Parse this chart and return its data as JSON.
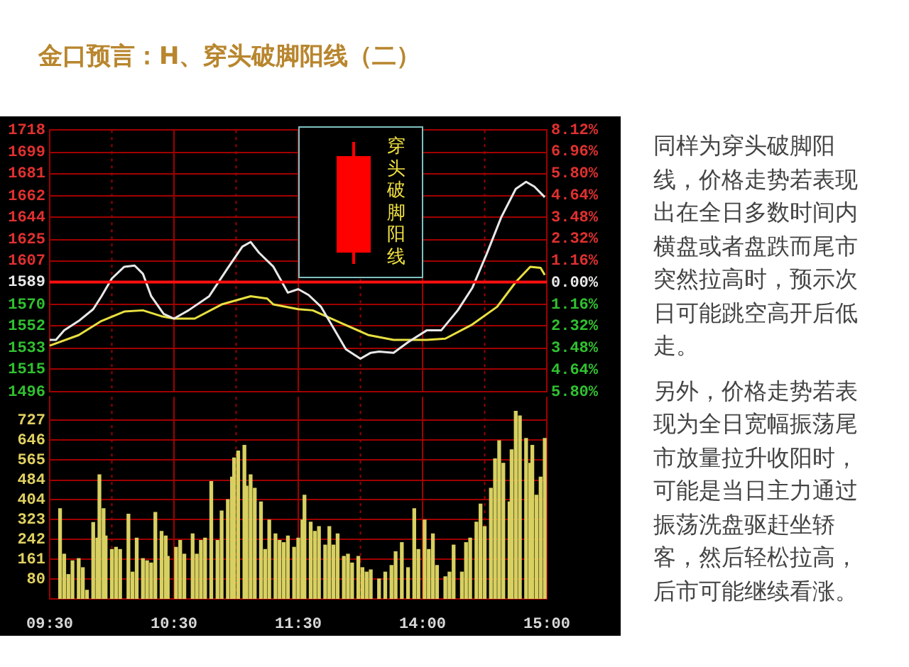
{
  "chart_data": [
    {
      "type": "line",
      "title": "金口预言：H、穿头破脚阳线（二）",
      "annotations": [
        "穿头破脚阳线",
        "同样为穿头破脚阳线，价格走势若表现出在全日多数时间内横盘或者盘跌而尾市突然拉高时，预示次日可能跳空高开后低走。",
        "另外，价格走势若表现为全日宽幅振荡尾市放量拉升收阳时，可能是当日主力通过振荡洗盘驱赶坐轿客，然后轻松拉高，后市可能继续看涨。"
      ],
      "categories": [
        null,
        null,
        null,
        null,
        null,
        null,
        null,
        null,
        null,
        null,
        null,
        null,
        null,
        null,
        null,
        null,
        null,
        null,
        null,
        null,
        null,
        null,
        null,
        null,
        null,
        null,
        null,
        null,
        null,
        null,
        null,
        null,
        null,
        null,
        null,
        null,
        null,
        null,
        null,
        null,
        null,
        null,
        null,
        null,
        null,
        null,
        null,
        null,
        null,
        null,
        null,
        null,
        null,
        null,
        null,
        null,
        null,
        null,
        null,
        null,
        null,
        null,
        null,
        null,
        null,
        null,
        null,
        null,
        null,
        null,
        null,
        null,
        null,
        null,
        null,
        null,
        null,
        null,
        null,
        null,
        null,
        null,
        null,
        null,
        null,
        null,
        null,
        null,
        null,
        null,
        null,
        null,
        null,
        null,
        null,
        null,
        null,
        null,
        null,
        null,
        null,
        null,
        null,
        null,
        null,
        null,
        null,
        null,
        null,
        null,
        null,
        null,
        null,
        null,
        null,
        null,
        null,
        null,
        null,
        null,
        null,
        null,
        null,
        null,
        null,
        null,
        null,
        null,
        null,
        null,
        null,
        null,
        null,
        null,
        null,
        null,
        null,
        null,
        null,
        null,
        null,
        null,
        null,
        null,
        null,
        null,
        null,
        null,
        null,
        null,
        null,
        null,
        null,
        null,
        null,
        null,
        null,
        null,
        null,
        null,
        null,
        null,
        null,
        null,
        null,
        null,
        null,
        null,
        null,
        null,
        null,
        null,
        null,
        null,
        null,
        null,
        null,
        null,
        null,
        null,
        null,
        null,
        null,
        null,
        null,
        null,
        null,
        null,
        null,
        null,
        null,
        null,
        null,
        null,
        null,
        null,
        null,
        null,
        null,
        null,
        null,
        null,
        null,
        null,
        null,
        null,
        null,
        null,
        null,
        null,
        null,
        null,
        null,
        null,
        null,
        null,
        null,
        null,
        null,
        null,
        null,
        null,
        null,
        null,
        null,
        null,
        null,
        null,
        null,
        null,
        null,
        null,
        null,
        null,
        null,
        null,
        null,
        null,
        null,
        null,
        null
      ],
      "series": [
        {
          "color": "#e8e8e8",
          "values": [
            1540,
            null,
            null,
            1540,
            null,
            null,
            null,
            1548,
            null,
            null,
            null,
            null,
            null,
            null,
            1556,
            null,
            null,
            null,
            null,
            null,
            null,
            1566,
            null,
            null,
            null,
            1577,
            null,
            null,
            null,
            null,
            1592,
            null,
            null,
            null,
            null,
            null,
            1602,
            null,
            null,
            null,
            null,
            1603,
            null,
            null,
            null,
            1596,
            null,
            null,
            null,
            1577,
            null,
            null,
            null,
            null,
            null,
            1562,
            null,
            null,
            null,
            null,
            1558,
            null,
            null,
            null,
            null,
            null,
            null,
            1565,
            null,
            null,
            null,
            null,
            null,
            null,
            null,
            null,
            null,
            1577,
            null,
            null,
            null,
            null,
            null,
            null,
            null,
            null,
            1601,
            null,
            null,
            null,
            null,
            null,
            null,
            1619,
            null,
            null,
            null,
            1623,
            null,
            null,
            null,
            1614,
            null,
            null,
            null,
            null,
            null,
            null,
            1602,
            null,
            null,
            null,
            null,
            null,
            null,
            1580,
            null,
            null,
            null,
            null,
            1583,
            null,
            null,
            null,
            null,
            1578,
            null,
            null,
            null,
            null,
            null,
            1568,
            null,
            null,
            null,
            null,
            1553,
            null,
            null,
            null,
            null,
            null,
            null,
            1532,
            null,
            null,
            null,
            null,
            null,
            null,
            1524,
            null,
            null,
            null,
            null,
            1529,
            null,
            null,
            null,
            1530,
            null,
            null,
            null,
            null,
            null,
            null,
            1529,
            null,
            null,
            null,
            null,
            null,
            null,
            1538,
            null,
            null,
            null,
            null,
            null,
            null,
            null,
            null,
            1548,
            null,
            null,
            null,
            null,
            null,
            null,
            1548,
            null,
            null,
            null,
            null,
            null,
            null,
            null,
            1565,
            null,
            null,
            null,
            null,
            null,
            null,
            1584,
            null,
            null,
            null,
            null,
            null,
            null,
            1613,
            null,
            null,
            null,
            null,
            null,
            null,
            1644,
            null,
            null,
            null,
            null,
            null,
            null,
            1668,
            null,
            null,
            null,
            null,
            1674,
            null,
            null,
            null,
            1670,
            null,
            null,
            null,
            null,
            1661,
            null
          ]
        },
        {
          "color": "#e8e040",
          "values": [
            1535,
            null,
            null,
            null,
            null,
            null,
            null,
            null,
            null,
            null,
            null,
            null,
            null,
            null,
            1544,
            null,
            null,
            null,
            null,
            null,
            null,
            null,
            null,
            null,
            null,
            1556,
            null,
            null,
            null,
            null,
            null,
            null,
            null,
            null,
            null,
            null,
            1564,
            null,
            null,
            null,
            null,
            null,
            null,
            null,
            null,
            1565,
            null,
            null,
            null,
            null,
            null,
            null,
            null,
            null,
            1560,
            null,
            null,
            null,
            null,
            null,
            1558,
            null,
            null,
            null,
            null,
            null,
            null,
            null,
            null,
            null,
            1558,
            null,
            null,
            null,
            null,
            null,
            null,
            null,
            null,
            null,
            null,
            null,
            null,
            1570,
            null,
            null,
            null,
            null,
            null,
            null,
            null,
            null,
            null,
            null,
            null,
            null,
            null,
            1577,
            null,
            null,
            null,
            null,
            null,
            null,
            null,
            1575,
            null,
            null,
            1570,
            null,
            null,
            null,
            null,
            null,
            null,
            null,
            null,
            null,
            null,
            null,
            1566,
            null,
            null,
            null,
            null,
            null,
            null,
            1565,
            null,
            null,
            null,
            null,
            null,
            null,
            null,
            null,
            null,
            null,
            null,
            null,
            null,
            1554,
            null,
            null,
            null,
            null,
            null,
            null,
            null,
            null,
            null,
            null,
            null,
            null,
            1544,
            null,
            null,
            null,
            null,
            null,
            null,
            null,
            null,
            null,
            null,
            null,
            1540,
            null,
            null,
            null,
            null,
            null,
            null,
            null,
            null,
            null,
            null,
            null,
            null,
            null,
            null,
            null,
            1540,
            null,
            null,
            null,
            null,
            null,
            null,
            null,
            null,
            1541,
            null,
            null,
            null,
            null,
            null,
            null,
            null,
            null,
            null,
            null,
            null,
            null,
            1553,
            null,
            null,
            null,
            null,
            null,
            null,
            null,
            null,
            null,
            null,
            null,
            1568,
            null,
            null,
            null,
            null,
            null,
            null,
            null,
            null,
            1589,
            null,
            null,
            null,
            null,
            null,
            null,
            1602,
            null,
            null,
            null,
            null,
            1601,
            null,
            1595,
            null
          ]
        }
      ],
      "ylim": [
        1496,
        1718
      ],
      "yticks": [
        1718,
        1699,
        1681,
        1662,
        1644,
        1625,
        1607,
        1589,
        1570,
        1552,
        1533,
        1515,
        1496
      ],
      "y2lim": [
        -5.8,
        8.12
      ],
      "y2ticks": [
        {
          "value": 8.12,
          "label": "8.12%"
        },
        {
          "value": 6.96,
          "label": "6.96%"
        },
        {
          "value": 5.8,
          "label": "5.80%"
        },
        {
          "value": 4.64,
          "label": "4.64%"
        },
        {
          "value": 3.48,
          "label": "3.48%"
        },
        {
          "value": 2.32,
          "label": "2.32%"
        },
        {
          "value": 1.16,
          "label": "1.16%"
        },
        {
          "value": 0,
          "label": "0.00%"
        },
        {
          "value": -1.16,
          "label": "1.16%"
        },
        {
          "value": -2.32,
          "label": "2.32%"
        },
        {
          "value": -3.48,
          "label": "3.48%"
        },
        {
          "value": -4.64,
          "label": "4.64%"
        },
        {
          "value": -5.8,
          "label": "5.80%"
        }
      ],
      "ref_lines": [
        {
          "axis": "y",
          "value": 1589,
          "color": "#ff1010"
        }
      ],
      "grid": true,
      "legend": false,
      "marker": "none",
      "line_style": "solid",
      "tick_labels": "y"
    },
    {
      "type": "bar",
      "color": "#d8d060",
      "categories": [
        "09:30",
        null,
        null,
        null,
        null,
        null,
        null,
        null,
        null,
        null,
        null,
        null,
        null,
        null,
        null,
        null,
        null,
        null,
        null,
        null,
        null,
        null,
        null,
        null,
        null,
        null,
        null,
        null,
        null,
        null,
        null,
        null,
        null,
        null,
        null,
        null,
        null,
        null,
        null,
        null,
        null,
        null,
        null,
        null,
        null,
        null,
        null,
        null,
        null,
        null,
        null,
        null,
        null,
        null,
        null,
        null,
        null,
        null,
        null,
        null,
        "10:30",
        null,
        null,
        null,
        null,
        null,
        null,
        null,
        null,
        null,
        null,
        null,
        null,
        null,
        null,
        null,
        null,
        null,
        null,
        null,
        null,
        null,
        null,
        null,
        null,
        null,
        null,
        null,
        null,
        null,
        null,
        null,
        null,
        null,
        null,
        null,
        null,
        null,
        null,
        null,
        null,
        null,
        null,
        null,
        null,
        null,
        null,
        null,
        null,
        null,
        null,
        null,
        null,
        null,
        null,
        null,
        null,
        null,
        null,
        null,
        "11:30",
        null,
        null,
        null,
        null,
        null,
        null,
        null,
        null,
        null,
        null,
        null,
        null,
        null,
        null,
        null,
        null,
        null,
        null,
        null,
        null,
        null,
        null,
        null,
        null,
        null,
        null,
        null,
        null,
        null,
        null,
        null,
        null,
        null,
        null,
        null,
        null,
        null,
        null,
        null,
        null,
        null,
        null,
        null,
        null,
        null,
        null,
        null,
        null,
        null,
        null,
        null,
        null,
        null,
        null,
        null,
        null,
        null,
        null,
        null,
        "14:00",
        null,
        null,
        null,
        null,
        null,
        null,
        null,
        null,
        null,
        null,
        null,
        null,
        null,
        null,
        null,
        null,
        null,
        null,
        null,
        null,
        null,
        null,
        null,
        null,
        null,
        null,
        null,
        null,
        null,
        null,
        null,
        null,
        null,
        null,
        null,
        null,
        null,
        null,
        null,
        null,
        null,
        null,
        null,
        null,
        null,
        null,
        null,
        null,
        null,
        null,
        null,
        null,
        null,
        null,
        null,
        null,
        null,
        null,
        null,
        "15:00"
      ],
      "values": [
        null,
        null,
        null,
        null,
        null,
        367,
        null,
        182,
        null,
        99,
        null,
        155,
        null,
        null,
        164,
        null,
        127,
        null,
        35,
        null,
        null,
        311,
        null,
        247,
        505,
        null,
        367,
        256,
        null,
        null,
        201,
        null,
        210,
        null,
        201,
        null,
        null,
        null,
        345,
        null,
        109,
        null,
        247,
        null,
        null,
        164,
        null,
        155,
        null,
        146,
        null,
        352,
        null,
        null,
        275,
        null,
        256,
        173,
        null,
        null,
        null,
        210,
        null,
        238,
        null,
        182,
        null,
        null,
        null,
        265,
        null,
        182,
        null,
        238,
        null,
        247,
        null,
        null,
        478,
        null,
        null,
        238,
        null,
        358,
        null,
        null,
        404,
        null,
        496,
        574,
        null,
        602,
        null,
        null,
        625,
        459,
        null,
        505,
        null,
        450,
        null,
        null,
        395,
        null,
        201,
        null,
        321,
        null,
        null,
        265,
        null,
        238,
        null,
        229,
        null,
        256,
        null,
        null,
        210,
        null,
        247,
        null,
        321,
        422,
        null,
        null,
        312,
        null,
        275,
        null,
        294,
        null,
        null,
        219,
        null,
        294,
        null,
        219,
        null,
        265,
        null,
        null,
        173,
        null,
        182,
        null,
        146,
        null,
        null,
        173,
        null,
        127,
        null,
        109,
        null,
        118,
        null,
        null,
        null,
        81,
        null,
        null,
        109,
        null,
        null,
        136,
        null,
        192,
        null,
        null,
        229,
        null,
        null,
        127,
        null,
        null,
        367,
        null,
        201,
        null,
        null,
        321,
        null,
        201,
        null,
        265,
        null,
        136,
        null,
        null,
        null,
        90,
        null,
        109,
        null,
        219,
        null,
        null,
        null,
        109,
        null,
        229,
        null,
        247,
        null,
        null,
        312,
        null,
        386,
        null,
        294,
        null,
        null,
        450,
        null,
        570,
        null,
        644,
        null,
        552,
        null,
        null,
        395,
        607,
        null,
        764,
        null,
        745,
        null,
        null,
        653,
        null,
        552,
        625,
        null,
        422,
        null,
        496,
        null,
        653,
        null
      ],
      "ylim": [
        0,
        823
      ],
      "yticks": [
        80,
        161,
        242,
        323,
        404,
        484,
        565,
        646,
        727
      ],
      "grid": true,
      "legend": false
    }
  ]
}
